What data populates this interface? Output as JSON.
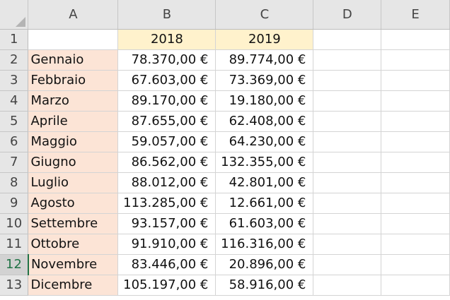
{
  "columns": [
    "A",
    "B",
    "C",
    "D",
    "E"
  ],
  "row_numbers": [
    "1",
    "2",
    "3",
    "4",
    "5",
    "6",
    "7",
    "8",
    "9",
    "10",
    "11",
    "12",
    "13"
  ],
  "active_row": "12",
  "header_row": {
    "A": "",
    "B": "2018",
    "C": "2019"
  },
  "rows": [
    {
      "month": "Gennaio",
      "y2018": "78.370,00 €",
      "y2019": "89.774,00 €"
    },
    {
      "month": "Febbraio",
      "y2018": "67.603,00 €",
      "y2019": "73.369,00 €"
    },
    {
      "month": "Marzo",
      "y2018": "89.170,00 €",
      "y2019": "19.180,00 €"
    },
    {
      "month": "Aprile",
      "y2018": "87.655,00 €",
      "y2019": "62.408,00 €"
    },
    {
      "month": "Maggio",
      "y2018": "59.057,00 €",
      "y2019": "64.230,00 €"
    },
    {
      "month": "Giugno",
      "y2018": "86.562,00 €",
      "y2019": "132.355,00 €"
    },
    {
      "month": "Luglio",
      "y2018": "88.012,00 €",
      "y2019": "42.801,00 €"
    },
    {
      "month": "Agosto",
      "y2018": "113.285,00 €",
      "y2019": "12.661,00 €"
    },
    {
      "month": "Settembre",
      "y2018": "93.157,00 €",
      "y2019": "61.603,00 €"
    },
    {
      "month": "Ottobre",
      "y2018": "91.910,00 €",
      "y2019": "116.316,00 €"
    },
    {
      "month": "Novembre",
      "y2018": "83.446,00 €",
      "y2019": "20.896,00 €"
    },
    {
      "month": "Dicembre",
      "y2018": "105.197,00 €",
      "y2019": "58.916,00 €"
    }
  ],
  "colors": {
    "month_fill": "#fce4d6",
    "year_fill": "#fff2cc",
    "header_fill": "#e6e6e6",
    "accent": "#217346"
  }
}
